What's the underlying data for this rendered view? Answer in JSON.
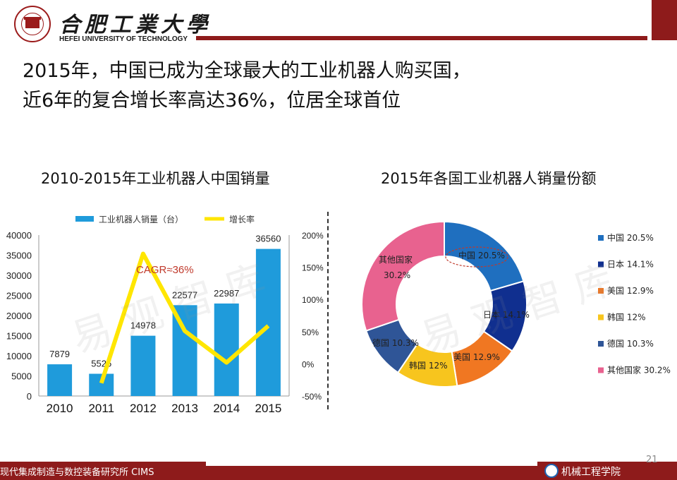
{
  "header": {
    "university_cn": "合肥工業大學",
    "university_en": "HEFEI UNIVERSITY OF TECHNOLOGY"
  },
  "slide": {
    "title_line1": "2015年，中国已成为全球最大的工业机器人购买国，",
    "title_line2": "近6年的复合增长率高达36%，位居全球首位",
    "watermark": "易观智库",
    "page_number": "21"
  },
  "footer": {
    "left_text": "现代集成制造与数控装备研究所 CIMS",
    "right_text": "机械工程学院"
  },
  "colors": {
    "brand_red": "#8e1b1b",
    "bar": "#1f9bdb",
    "growth_line": "#ffe600"
  },
  "chart_data": [
    {
      "type": "bar",
      "title": "2010-2015年工业机器人中国销量",
      "categories": [
        "2010",
        "2011",
        "2012",
        "2013",
        "2014",
        "2015"
      ],
      "series": [
        {
          "name": "工业机器人销量（台）",
          "type": "bar",
          "axis": "left",
          "values": [
            7879,
            5525,
            14978,
            22577,
            22987,
            36560
          ]
        },
        {
          "name": "增长率",
          "type": "line",
          "axis": "right",
          "values": [
            null,
            -30,
            171,
            51,
            2,
            59
          ]
        }
      ],
      "y_left": {
        "min": 0,
        "max": 40000,
        "ticks": [
          0,
          5000,
          10000,
          15000,
          20000,
          25000,
          30000,
          35000,
          40000
        ]
      },
      "y_right": {
        "min": -50,
        "max": 200,
        "tick_labels": [
          "-50%",
          "0%",
          "50%",
          "100%",
          "150%",
          "200%"
        ]
      },
      "annotation": "CAGR≈36%",
      "legend": "top"
    },
    {
      "type": "pie",
      "variant": "donut",
      "title": "2015年各国工业机器人销量份额",
      "slices": [
        {
          "label": "中国",
          "value": 20.5,
          "color": "#1f6fbf"
        },
        {
          "label": "日本",
          "value": 14.1,
          "color": "#102f8f"
        },
        {
          "label": "美国",
          "value": 12.9,
          "color": "#f07722"
        },
        {
          "label": "韩国",
          "value": 12.0,
          "color": "#f7c51e"
        },
        {
          "label": "德国",
          "value": 10.3,
          "color": "#2f5597"
        },
        {
          "label": "其他国家",
          "value": 30.2,
          "color": "#e8628f"
        }
      ],
      "legend": "right"
    }
  ]
}
